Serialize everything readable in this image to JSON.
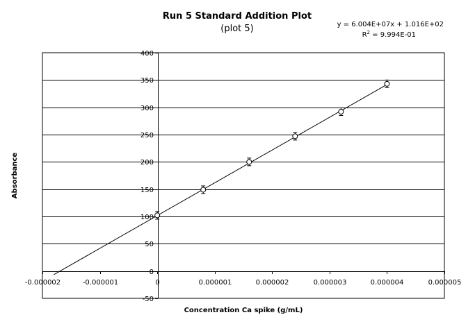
{
  "chart_data": {
    "type": "scatter",
    "title": "Run 5 Standard Addition Plot",
    "subtitle": "(plot 5)",
    "xlabel": "Concentration Ca spike (g/mL)",
    "ylabel": "Absorbance",
    "xlim": [
      -2e-06,
      5e-06
    ],
    "ylim": [
      -50,
      400
    ],
    "x_ticks": [
      -2e-06,
      -1e-06,
      0,
      1e-06,
      2e-06,
      3e-06,
      4e-06,
      5e-06
    ],
    "x_tick_labels": [
      "-0.000002",
      "-0.000001",
      "0",
      "0.000001",
      "0.000002",
      "0.000003",
      "0.000004",
      "0.000005"
    ],
    "y_ticks": [
      -50,
      0,
      50,
      100,
      150,
      200,
      250,
      300,
      350,
      400
    ],
    "y_tick_labels": [
      "-50",
      "0",
      "50",
      "100",
      "150",
      "200",
      "250",
      "300",
      "350",
      "400"
    ],
    "grid": "horizontal",
    "points": [
      {
        "x": 0,
        "y": 102,
        "err": 7
      },
      {
        "x": 8e-07,
        "y": 149,
        "err": 7
      },
      {
        "x": 1.6e-06,
        "y": 200,
        "err": 7
      },
      {
        "x": 2.4e-06,
        "y": 247,
        "err": 7
      },
      {
        "x": 3.2e-06,
        "y": 292,
        "err": 7
      },
      {
        "x": 4e-06,
        "y": 343,
        "err": 7
      }
    ],
    "fit": {
      "slope": 60040000,
      "intercept": 101.6,
      "x_range": [
        -1.8e-06,
        4e-06
      ],
      "equation": "y = 6.004E+07x + 1.016E+02",
      "r2_prefix": "R",
      "r2_sup": "2",
      "r2_suffix": " = 9.994E-01"
    }
  }
}
